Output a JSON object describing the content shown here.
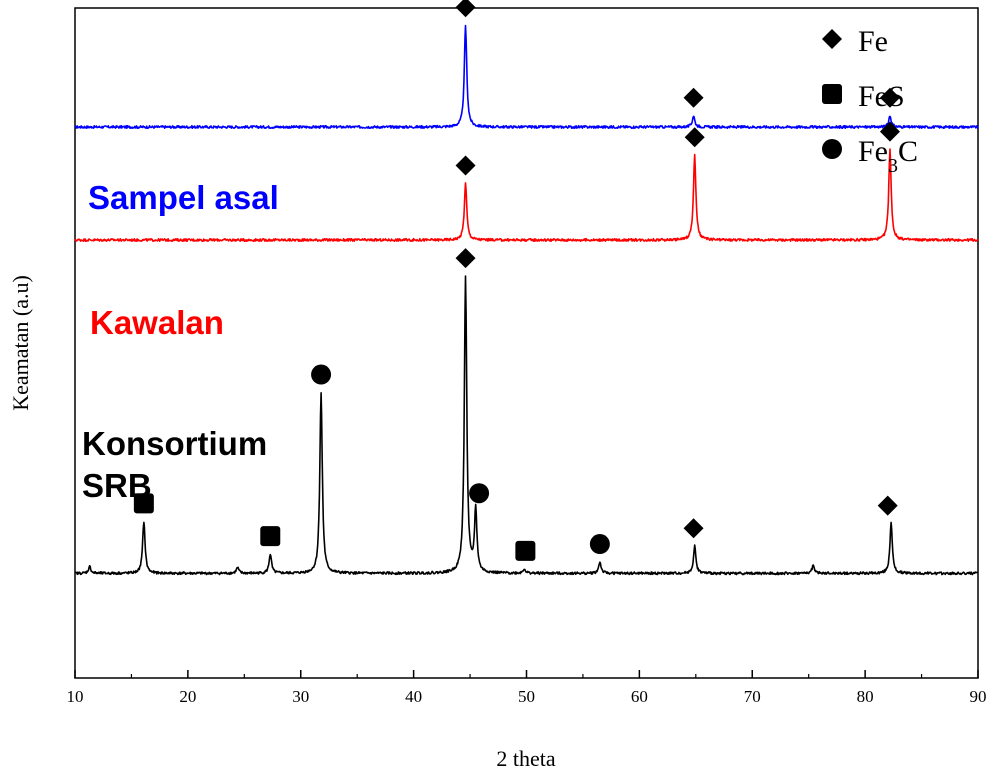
{
  "chart_data": {
    "type": "line",
    "title": "",
    "xlabel": "2 theta",
    "ylabel": "Keamatan (a.u)",
    "xlim": [
      10,
      90
    ],
    "x_ticks": [
      10,
      20,
      30,
      40,
      50,
      60,
      70,
      80,
      90
    ],
    "y_ticks_shown": false,
    "grid": false,
    "legend_position": "top-right",
    "legend": [
      {
        "label": "Fe",
        "marker": "diamond"
      },
      {
        "label": "FeS",
        "marker": "square"
      },
      {
        "label": "Fe",
        "subscript": "3",
        "suffix": "C",
        "marker": "circle"
      }
    ],
    "series": [
      {
        "name": "Sampel asal",
        "label_lines": [
          "Sampel asal"
        ],
        "color": "#0000ff",
        "baseline": 1.0,
        "peaks": [
          {
            "x": 44.6,
            "height": 0.9,
            "phase": "Fe"
          },
          {
            "x": 64.8,
            "height": 0.1,
            "phase": "Fe"
          },
          {
            "x": 82.2,
            "height": 0.1,
            "phase": "Fe"
          }
        ]
      },
      {
        "name": "Kawalan",
        "label_lines": [
          "Kawalan"
        ],
        "color": "#ff0000",
        "baseline": 0.0,
        "peaks": [
          {
            "x": 44.6,
            "height": 0.5,
            "phase": "Fe"
          },
          {
            "x": 64.9,
            "height": 0.75,
            "phase": "Fe"
          },
          {
            "x": 82.2,
            "height": 0.8,
            "phase": "Fe"
          }
        ]
      },
      {
        "name": "Konsortium SRB",
        "label_lines": [
          "Konsortium",
          "SRB"
        ],
        "color": "#000000",
        "baseline": -2.95,
        "peaks": [
          {
            "x": 11.3,
            "height": 0.06,
            "phase": ""
          },
          {
            "x": 16.1,
            "height": 0.46,
            "phase": "FeS"
          },
          {
            "x": 24.4,
            "height": 0.05,
            "phase": ""
          },
          {
            "x": 27.3,
            "height": 0.17,
            "phase": "FeS"
          },
          {
            "x": 31.8,
            "height": 1.6,
            "phase": "Fe3C"
          },
          {
            "x": 44.6,
            "height": 2.63,
            "phase": "Fe"
          },
          {
            "x": 45.5,
            "height": 0.55,
            "phase": "Fe3C"
          },
          {
            "x": 49.8,
            "height": 0.04,
            "phase": "FeS"
          },
          {
            "x": 56.5,
            "height": 0.1,
            "phase": "Fe3C"
          },
          {
            "x": 64.9,
            "height": 0.24,
            "phase": "Fe"
          },
          {
            "x": 75.4,
            "height": 0.07,
            "phase": ""
          },
          {
            "x": 82.3,
            "height": 0.44,
            "phase": "Fe"
          }
        ]
      }
    ],
    "peak_markers": [
      {
        "series": "Sampel asal",
        "x": 44.6,
        "phase": "Fe"
      },
      {
        "series": "Sampel asal",
        "x": 64.8,
        "phase": "Fe"
      },
      {
        "series": "Sampel asal",
        "x": 82.2,
        "phase": "Fe"
      },
      {
        "series": "Kawalan",
        "x": 44.6,
        "phase": "Fe"
      },
      {
        "series": "Kawalan",
        "x": 64.9,
        "phase": "Fe"
      },
      {
        "series": "Kawalan",
        "x": 82.2,
        "phase": "Fe"
      },
      {
        "series": "Konsortium SRB",
        "x": 16.1,
        "phase": "FeS"
      },
      {
        "series": "Konsortium SRB",
        "x": 27.3,
        "phase": "FeS"
      },
      {
        "series": "Konsortium SRB",
        "x": 31.8,
        "phase": "Fe3C"
      },
      {
        "series": "Konsortium SRB",
        "x": 44.6,
        "phase": "Fe"
      },
      {
        "series": "Konsortium SRB",
        "x": 45.8,
        "phase": "Fe3C"
      },
      {
        "series": "Konsortium SRB",
        "x": 49.9,
        "phase": "FeS"
      },
      {
        "series": "Konsortium SRB",
        "x": 56.5,
        "phase": "Fe3C"
      },
      {
        "series": "Konsortium SRB",
        "x": 64.8,
        "phase": "Fe"
      },
      {
        "series": "Konsortium SRB",
        "x": 82.0,
        "phase": "Fe"
      }
    ]
  }
}
